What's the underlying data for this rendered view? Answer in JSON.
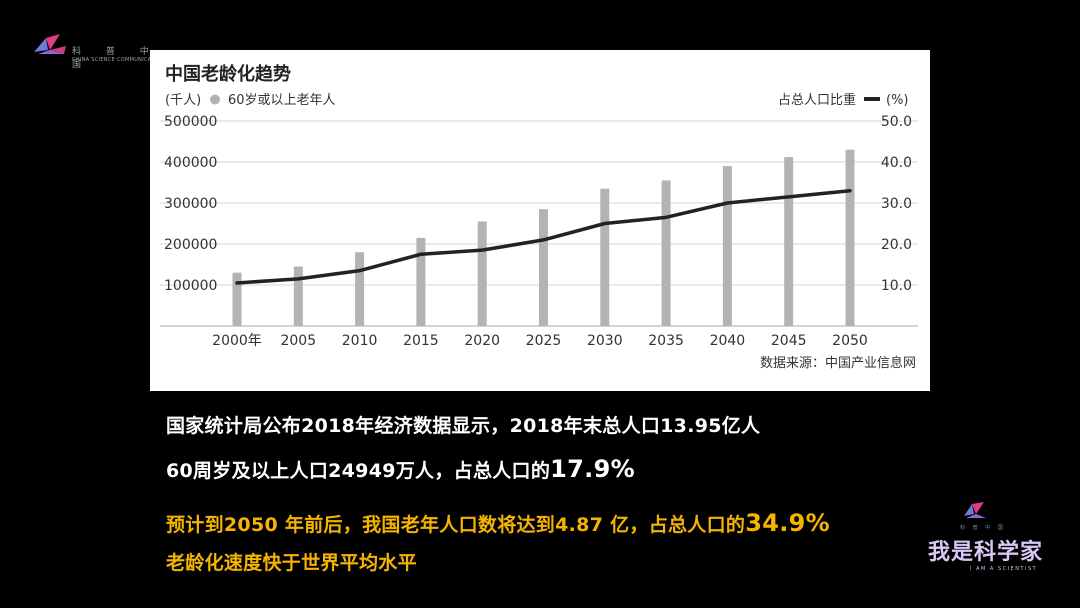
{
  "branding": {
    "top_left_cn": "科 普 中 国",
    "top_left_en": "CHINA SCIENCE COMMUNICATION",
    "bottom_right_small": "科 普 中 国",
    "bottom_right_title": "我是科学家",
    "bottom_right_sub": "I AM A SCIENTIST"
  },
  "colors": {
    "bar": "#b3b3b3",
    "line": "#222222",
    "highlight_text": "#f5b400"
  },
  "chart_data": {
    "type": "bar",
    "title": "中国老龄化趋势",
    "left_unit": "(千人)",
    "bar_legend": "60岁或以上老年人",
    "right_legend": "占总人口比重",
    "right_unit": "(%)",
    "categories": [
      "2000年",
      "2005",
      "2010",
      "2015",
      "2020",
      "2025",
      "2030",
      "2035",
      "2040",
      "2045",
      "2050"
    ],
    "yticks": [
      "500000",
      "400000",
      "300000",
      "200000",
      "100000"
    ],
    "ytick_values": [
      500000,
      400000,
      300000,
      200000,
      100000
    ],
    "y2ticks": [
      "50.0",
      "40.0",
      "30.0",
      "20.0",
      "10.0"
    ],
    "y2tick_values": [
      50,
      40,
      30,
      20,
      10
    ],
    "ylim": [
      0,
      500000
    ],
    "y2lim": [
      0,
      50
    ],
    "series": [
      {
        "name": "60岁或以上老年人",
        "type": "bar",
        "values": [
          130000,
          145000,
          180000,
          215000,
          255000,
          285000,
          335000,
          355000,
          390000,
          412000,
          430000
        ]
      },
      {
        "name": "占总人口比重",
        "type": "line",
        "axis": "right",
        "values": [
          10.5,
          11.5,
          13.5,
          17.5,
          18.5,
          21,
          25,
          26.5,
          30,
          31.5,
          33
        ]
      }
    ],
    "grid": true,
    "source": "数据来源：中国产业信息网"
  },
  "text": {
    "line1": "国家统计局公布2018年经济数据显示，2018年末总人口13.95亿人",
    "line2_prefix": "60周岁及以上人口24949万人，占总人口的",
    "line2_value": "17.9%",
    "line3_prefix": "预计到2050 年前后，我国老年人口数将达到4.87 亿，占总人口的",
    "line3_value": "34.9%",
    "line4": "老龄化速度快于世界平均水平"
  }
}
